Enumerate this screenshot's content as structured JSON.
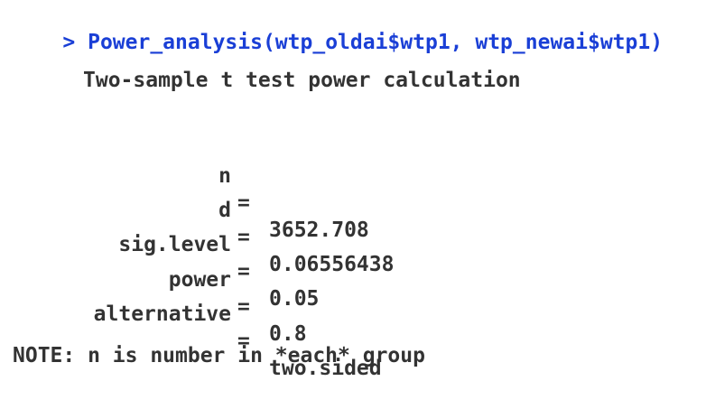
{
  "console": {
    "prompt": "> ",
    "command": "Power_analysis(wtp_oldai$wtp1, wtp_newai$wtp1)",
    "title": "Two-sample t test power calculation",
    "results": [
      {
        "key": "n",
        "eq": "=",
        "value": "3652.708"
      },
      {
        "key": "d",
        "eq": "=",
        "value": "0.06556438"
      },
      {
        "key": "sig.level",
        "eq": "=",
        "value": "0.05"
      },
      {
        "key": "power",
        "eq": "=",
        "value": "0.8"
      },
      {
        "key": "alternative",
        "eq": "=",
        "value": "two.sided"
      }
    ],
    "note": "NOTE: n is number in *each* group"
  },
  "colors": {
    "command": "#1a3fd6",
    "output": "#333333",
    "background": "#ffffff"
  }
}
